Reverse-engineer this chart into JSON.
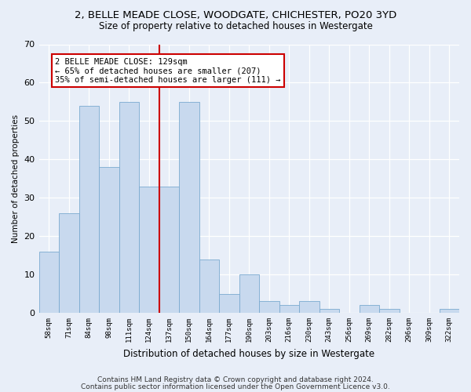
{
  "title1": "2, BELLE MEADE CLOSE, WOODGATE, CHICHESTER, PO20 3YD",
  "title2": "Size of property relative to detached houses in Westergate",
  "xlabel": "Distribution of detached houses by size in Westergate",
  "ylabel": "Number of detached properties",
  "categories": [
    "58sqm",
    "71sqm",
    "84sqm",
    "98sqm",
    "111sqm",
    "124sqm",
    "137sqm",
    "150sqm",
    "164sqm",
    "177sqm",
    "190sqm",
    "203sqm",
    "216sqm",
    "230sqm",
    "243sqm",
    "256sqm",
    "269sqm",
    "282sqm",
    "296sqm",
    "309sqm",
    "322sqm"
  ],
  "values": [
    16,
    26,
    54,
    38,
    55,
    33,
    33,
    55,
    14,
    5,
    10,
    3,
    2,
    3,
    1,
    0,
    2,
    1,
    0,
    0,
    1
  ],
  "bar_color": "#c8d9ee",
  "bar_edge_color": "#7aaad0",
  "vline_x": 5.5,
  "vline_color": "#cc0000",
  "annotation_text": "2 BELLE MEADE CLOSE: 129sqm\n← 65% of detached houses are smaller (207)\n35% of semi-detached houses are larger (111) →",
  "annotation_box_color": "white",
  "annotation_box_edge_color": "#cc0000",
  "ylim": [
    0,
    70
  ],
  "yticks": [
    0,
    10,
    20,
    30,
    40,
    50,
    60,
    70
  ],
  "footer1": "Contains HM Land Registry data © Crown copyright and database right 2024.",
  "footer2": "Contains public sector information licensed under the Open Government Licence v3.0.",
  "background_color": "#e8eef8",
  "plot_background_color": "#e8eef8",
  "title1_fontsize": 9.5,
  "title2_fontsize": 8.5,
  "xlabel_fontsize": 8.5,
  "ylabel_fontsize": 7.5,
  "footer_fontsize": 6.5,
  "annot_fontsize": 7.5
}
